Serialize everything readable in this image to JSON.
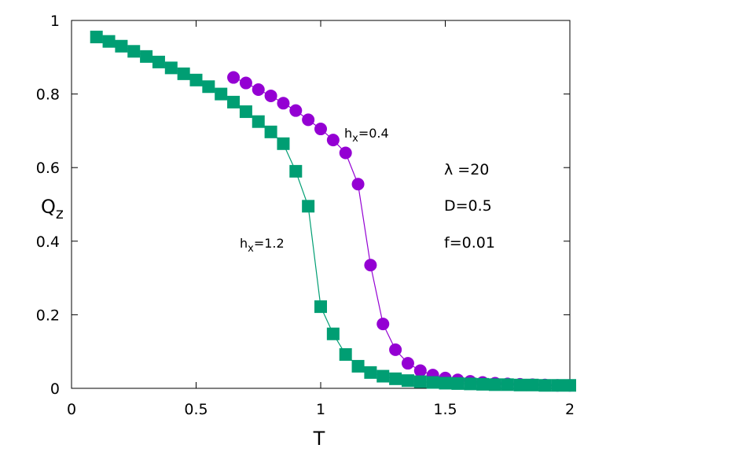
{
  "chart_data": {
    "type": "line",
    "title": "",
    "xlabel": "T",
    "ylabel": {
      "main": "Q",
      "sub": "z"
    },
    "xlim": [
      0,
      2
    ],
    "ylim": [
      0,
      1
    ],
    "xticks": [
      "0",
      "0.5",
      "1",
      "1.5",
      "2"
    ],
    "yticks": [
      "0",
      "0.2",
      "0.4",
      "0.6",
      "0.8",
      "1"
    ],
    "grid": false,
    "series": [
      {
        "label": {
          "main": "h",
          "sub": "x",
          "rest": "=0.4"
        },
        "color": "#9400d3",
        "marker": "circle",
        "x": [
          0.65,
          0.7,
          0.75,
          0.8,
          0.85,
          0.9,
          0.95,
          1.0,
          1.05,
          1.1,
          1.15,
          1.2,
          1.25,
          1.3,
          1.35,
          1.4,
          1.45,
          1.5,
          1.55,
          1.6,
          1.65,
          1.7,
          1.75,
          1.8,
          1.85,
          1.9,
          1.95,
          2.0
        ],
        "y": [
          0.845,
          0.83,
          0.812,
          0.795,
          0.775,
          0.755,
          0.73,
          0.705,
          0.675,
          0.64,
          0.555,
          0.335,
          0.175,
          0.105,
          0.068,
          0.048,
          0.036,
          0.028,
          0.023,
          0.019,
          0.016,
          0.014,
          0.012,
          0.011,
          0.01,
          0.009,
          0.008,
          0.008
        ]
      },
      {
        "label": {
          "main": "h",
          "sub": "x",
          "rest": "=1.2"
        },
        "color": "#009e73",
        "marker": "square",
        "x": [
          0.1,
          0.15,
          0.2,
          0.25,
          0.3,
          0.35,
          0.4,
          0.45,
          0.5,
          0.55,
          0.6,
          0.65,
          0.7,
          0.75,
          0.8,
          0.85,
          0.9,
          0.95,
          1.0,
          1.05,
          1.1,
          1.15,
          1.2,
          1.25,
          1.3,
          1.35,
          1.4,
          1.45,
          1.5,
          1.55,
          1.6,
          1.65,
          1.7,
          1.75,
          1.8,
          1.85,
          1.9,
          1.95,
          2.0
        ],
        "y": [
          0.955,
          0.943,
          0.93,
          0.916,
          0.902,
          0.887,
          0.871,
          0.855,
          0.838,
          0.82,
          0.8,
          0.778,
          0.752,
          0.725,
          0.697,
          0.665,
          0.59,
          0.495,
          0.222,
          0.148,
          0.092,
          0.06,
          0.043,
          0.033,
          0.026,
          0.021,
          0.018,
          0.016,
          0.014,
          0.013,
          0.012,
          0.011,
          0.01,
          0.01,
          0.009,
          0.009,
          0.008,
          0.008,
          0.008
        ]
      }
    ],
    "annotations": [
      "λ =20",
      "D=0.5",
      "f=0.01"
    ]
  }
}
